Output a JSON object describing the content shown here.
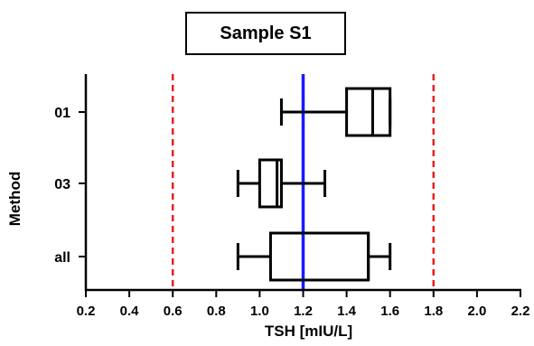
{
  "chart_data": {
    "type": "boxplot",
    "orientation": "horizontal",
    "title": "Sample S1",
    "xlabel": "TSH [mIU/L]",
    "ylabel": "Method",
    "xlim": [
      0.2,
      2.2
    ],
    "x_ticks": [
      "0.2",
      "0.4",
      "0.6",
      "0.8",
      "1.0",
      "1.2",
      "1.4",
      "1.6",
      "1.8",
      "2.0",
      "2.2"
    ],
    "categories": [
      "01",
      "03",
      "all"
    ],
    "boxes": [
      {
        "label": "01",
        "min": 1.1,
        "q1": 1.4,
        "median": 1.52,
        "q3": 1.6,
        "max": 1.6
      },
      {
        "label": "03",
        "min": 0.9,
        "q1": 1.0,
        "median": 1.08,
        "q3": 1.1,
        "max": 1.3
      },
      {
        "label": "all",
        "min": 0.9,
        "q1": 1.05,
        "median": 1.5,
        "q3": 1.5,
        "max": 1.6
      }
    ],
    "reference_lines": [
      {
        "x": 0.6,
        "color": "#e8201f",
        "style": "dashed"
      },
      {
        "x": 1.2,
        "color": "#1a1aff",
        "style": "solid"
      },
      {
        "x": 1.8,
        "color": "#e8201f",
        "style": "dashed"
      }
    ],
    "grid": false
  }
}
